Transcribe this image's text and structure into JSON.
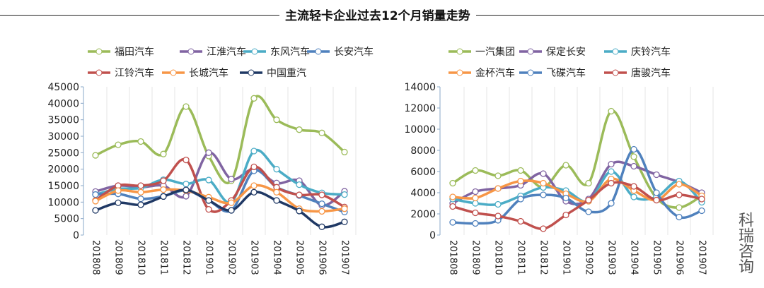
{
  "title": "主流轻卡企业过去12个月销量走势",
  "watermark": "科瑞咨询",
  "chart_data": [
    {
      "type": "line",
      "title": "",
      "ylim": [
        0,
        45000
      ],
      "yticks": [
        0,
        5000,
        10000,
        15000,
        20000,
        25000,
        30000,
        35000,
        40000,
        45000
      ],
      "categories": [
        "201808",
        "201809",
        "201810",
        "201811",
        "201812",
        "201901",
        "201902",
        "201903",
        "201904",
        "201905",
        "201906",
        "201907"
      ],
      "legend_placement": "top",
      "series": [
        {
          "name": "福田汽车",
          "color": "#9bbb59",
          "values": [
            24200,
            27400,
            28400,
            24600,
            39000,
            24000,
            16500,
            41500,
            35000,
            32000,
            31000,
            25200
          ]
        },
        {
          "name": "江淮汽车",
          "color": "#8064a2",
          "values": [
            13200,
            15000,
            14500,
            15000,
            11800,
            25000,
            17000,
            20000,
            15800,
            16500,
            9000,
            13300
          ]
        },
        {
          "name": "东风汽车",
          "color": "#4bacc6",
          "values": [
            12300,
            14000,
            14300,
            16800,
            15500,
            16700,
            10000,
            25500,
            20000,
            15300,
            12800,
            12300
          ]
        },
        {
          "name": "长安汽车",
          "color": "#4f81bd",
          "values": [
            12300,
            12500,
            11000,
            11800,
            13500,
            10500,
            7500,
            19500,
            14500,
            12000,
            9500,
            7000
          ]
        },
        {
          "name": "江铃汽车",
          "color": "#c0504d",
          "values": [
            10500,
            15000,
            15000,
            16500,
            22800,
            7800,
            10500,
            20700,
            14500,
            12200,
            12200,
            8500
          ]
        },
        {
          "name": "长城汽车",
          "color": "#f79646",
          "values": [
            10300,
            13500,
            13000,
            13800,
            13500,
            11500,
            9800,
            15000,
            13000,
            8000,
            7200,
            8000
          ]
        },
        {
          "name": "中国重汽",
          "color": "#1f3864",
          "values": [
            7500,
            9800,
            9200,
            11700,
            13700,
            10500,
            7500,
            13000,
            10500,
            7300,
            2500,
            4000
          ]
        }
      ]
    },
    {
      "type": "line",
      "title": "",
      "ylim": [
        0,
        14000
      ],
      "yticks": [
        0,
        2000,
        4000,
        6000,
        8000,
        10000,
        12000,
        14000
      ],
      "categories": [
        "201808",
        "201809",
        "201810",
        "201811",
        "201812",
        "201901",
        "201902",
        "201903",
        "201904",
        "201905",
        "201906",
        "201907"
      ],
      "legend_placement": "top",
      "series": [
        {
          "name": "一汽集团",
          "color": "#9bbb59",
          "values": [
            4900,
            6100,
            5600,
            6100,
            4500,
            6600,
            4900,
            11700,
            7400,
            3500,
            2600,
            3700
          ]
        },
        {
          "name": "保定长安",
          "color": "#8064a2",
          "values": [
            3000,
            4100,
            4400,
            4700,
            5800,
            3200,
            3400,
            6700,
            6500,
            5700,
            5000,
            4000
          ]
        },
        {
          "name": "庆铃汽车",
          "color": "#4bacc6",
          "values": [
            3400,
            3000,
            2900,
            3700,
            4500,
            4200,
            3200,
            6000,
            3600,
            3600,
            5100,
            3100
          ]
        },
        {
          "name": "金杯汽车",
          "color": "#f79646",
          "values": [
            3600,
            3500,
            4400,
            5100,
            4900,
            3900,
            3200,
            5300,
            4200,
            3300,
            4800,
            3700
          ]
        },
        {
          "name": "飞碟汽车",
          "color": "#4f81bd",
          "values": [
            1200,
            1100,
            1400,
            3400,
            3800,
            3500,
            2200,
            3000,
            8100,
            4000,
            1700,
            2300
          ]
        },
        {
          "name": "唐骏汽车",
          "color": "#c0504d",
          "values": [
            2700,
            2100,
            1800,
            1300,
            600,
            1900,
            3300,
            4900,
            4600,
            3300,
            3800,
            3400
          ]
        }
      ]
    }
  ]
}
